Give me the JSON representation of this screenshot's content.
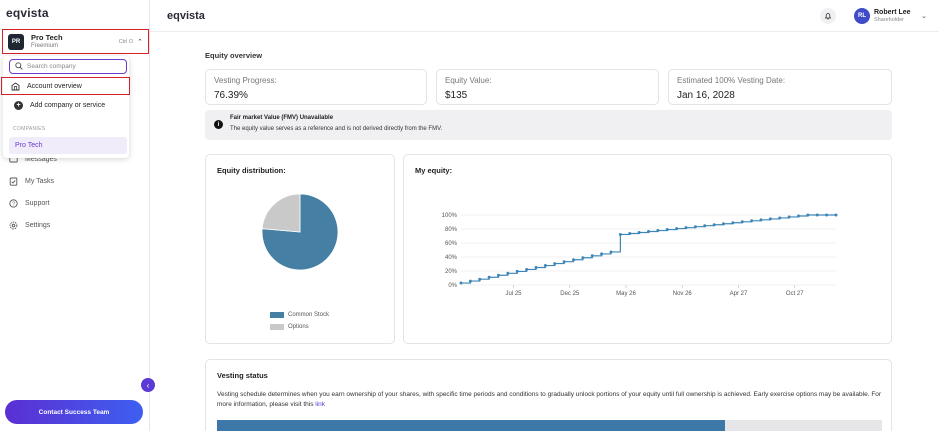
{
  "sidebar": {
    "logo": "eqvista",
    "company": {
      "initials": "PR",
      "name": "Pro Tech",
      "plan": "Freemium",
      "shortcut": "Ctrl O"
    },
    "dropdown": {
      "search_placeholder": "Search company",
      "account_overview": "Account overview",
      "add_company": "Add company or service",
      "section_label": "COMPANIES",
      "companies": [
        "Pro Tech"
      ]
    },
    "nav": [
      {
        "label": "Messages",
        "icon": "message-icon"
      },
      {
        "label": "My Tasks",
        "icon": "tasks-icon"
      },
      {
        "label": "Support",
        "icon": "support-icon"
      },
      {
        "label": "Settings",
        "icon": "gear-icon"
      }
    ],
    "contact_button": "Contact Success Team"
  },
  "header": {
    "brand": "eqvista",
    "user": {
      "initials": "RL",
      "name": "Robert Lee",
      "role": "Shareholder"
    }
  },
  "main": {
    "section_title": "Equity overview",
    "cards": [
      {
        "label": "Vesting Progress:",
        "value": "76.39%"
      },
      {
        "label": "Equity Value:",
        "value": "$135"
      },
      {
        "label": "Estimated 100% Vesting Date:",
        "value": "Jan 16, 2028"
      }
    ],
    "notice": {
      "title": "Fair market Value (FMV) Unavailable",
      "text": "The equity value serves as a reference and is not derived directly from the FMV."
    },
    "distribution_title": "Equity distribution:",
    "my_equity_title": "My equity:",
    "vesting": {
      "title": "Vesting status",
      "text": "Vesting schedule determines when you earn ownership of your shares, with specific time periods and conditions to gradually unlock portions of your equity until full ownership is achieved. Early exercise options may be available. For more information, please visit this ",
      "link_text": "link",
      "progress": 0.7639
    }
  },
  "chart_data": [
    {
      "type": "pie",
      "title": "Equity distribution:",
      "categories": [
        "Common Stock",
        "Options"
      ],
      "values": [
        76.39,
        23.61
      ],
      "colors": [
        "#457fa3",
        "#c9c9c9"
      ],
      "legend": "bottom"
    },
    {
      "type": "line",
      "title": "My equity:",
      "x_tick_labels": [
        "Jul 25",
        "Dec 25",
        "May 26",
        "Nov 26",
        "Apr 27",
        "Oct 27"
      ],
      "y_tick_labels": [
        "0%",
        "20%",
        "40%",
        "60%",
        "80%",
        "100%"
      ],
      "ylim": [
        0,
        100
      ],
      "grid": true,
      "color": "#3e86b8",
      "series": [
        {
          "x": [
            0,
            1,
            2,
            3,
            4,
            5,
            6,
            7,
            8,
            9,
            10,
            11,
            12,
            13,
            14,
            15,
            16,
            17,
            18,
            19,
            20,
            21,
            22,
            23,
            24,
            25,
            26,
            27,
            28,
            29,
            30,
            31,
            32,
            33,
            34,
            35,
            36,
            37,
            38,
            39,
            40
          ],
          "values": [
            2.8,
            5.6,
            8.3,
            11.1,
            13.9,
            16.7,
            19.4,
            22.2,
            25.0,
            27.8,
            30.6,
            33.3,
            36.1,
            38.9,
            41.7,
            44.4,
            47.2,
            72.2,
            73.6,
            75.0,
            76.4,
            77.8,
            79.2,
            80.6,
            81.9,
            83.3,
            84.7,
            86.1,
            87.5,
            88.9,
            90.3,
            91.7,
            93.1,
            94.4,
            95.8,
            97.2,
            98.6,
            100,
            100,
            100,
            100
          ]
        }
      ]
    }
  ]
}
